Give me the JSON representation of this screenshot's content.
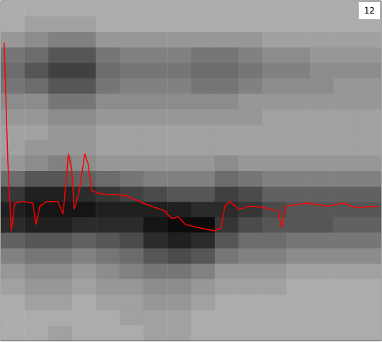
{
  "chart_data": {
    "type": "heatmap",
    "title": "12",
    "xlim": [
      0,
      100
    ],
    "xticks": [],
    "ylim": [
      0,
      22
    ],
    "yticks": [
      1,
      2,
      3,
      4,
      5,
      6,
      7,
      8,
      9,
      10,
      11,
      12,
      13,
      14,
      15,
      16,
      17,
      18,
      19,
      20,
      21
    ],
    "tick_labels": false,
    "grid": false,
    "x_edges": [
      0,
      6.25,
      12.5,
      18.75,
      25,
      31.25,
      37.5,
      43.75,
      50,
      56.25,
      62.5,
      68.75,
      75,
      81.25,
      87.5,
      93.75,
      100
    ],
    "y_edges": [
      0,
      1,
      2,
      3,
      4,
      5,
      6,
      7,
      8,
      9,
      10,
      11,
      12,
      13,
      14,
      15,
      16,
      17,
      18,
      19,
      20,
      21,
      22
    ],
    "color_range": [
      0,
      1
    ],
    "cells": [
      [
        0.2,
        0.2,
        0.25,
        0.2,
        0.2,
        0.2,
        0.25,
        0.25,
        0.2,
        0.2,
        0.2,
        0.2,
        0.2,
        0.2,
        0.2,
        0.2
      ],
      [
        0.2,
        0.2,
        0.2,
        0.2,
        0.2,
        0.25,
        0.25,
        0.25,
        0.2,
        0.2,
        0.2,
        0.2,
        0.2,
        0.2,
        0.2,
        0.2
      ],
      [
        0.2,
        0.25,
        0.25,
        0.2,
        0.25,
        0.25,
        0.3,
        0.3,
        0.25,
        0.2,
        0.2,
        0.2,
        0.2,
        0.2,
        0.2,
        0.2
      ],
      [
        0.25,
        0.3,
        0.3,
        0.25,
        0.3,
        0.3,
        0.35,
        0.35,
        0.3,
        0.25,
        0.25,
        0.25,
        0.2,
        0.2,
        0.2,
        0.2
      ],
      [
        0.3,
        0.35,
        0.35,
        0.3,
        0.35,
        0.4,
        0.45,
        0.45,
        0.4,
        0.3,
        0.3,
        0.3,
        0.25,
        0.25,
        0.25,
        0.25
      ],
      [
        0.4,
        0.45,
        0.45,
        0.4,
        0.45,
        0.5,
        0.6,
        0.65,
        0.6,
        0.45,
        0.4,
        0.4,
        0.35,
        0.35,
        0.35,
        0.35
      ],
      [
        0.55,
        0.6,
        0.6,
        0.55,
        0.6,
        0.65,
        0.8,
        0.85,
        0.8,
        0.6,
        0.5,
        0.5,
        0.45,
        0.45,
        0.45,
        0.45
      ],
      [
        0.8,
        0.85,
        0.85,
        0.8,
        0.8,
        0.8,
        0.9,
        0.95,
        0.95,
        0.75,
        0.65,
        0.6,
        0.6,
        0.6,
        0.55,
        0.55
      ],
      [
        0.85,
        0.9,
        0.9,
        0.9,
        0.85,
        0.85,
        0.85,
        0.85,
        0.8,
        0.8,
        0.75,
        0.65,
        0.6,
        0.6,
        0.6,
        0.6
      ],
      [
        0.75,
        0.85,
        0.85,
        0.8,
        0.75,
        0.7,
        0.65,
        0.6,
        0.6,
        0.7,
        0.65,
        0.55,
        0.55,
        0.55,
        0.55,
        0.55
      ],
      [
        0.5,
        0.6,
        0.6,
        0.55,
        0.5,
        0.45,
        0.4,
        0.4,
        0.4,
        0.5,
        0.45,
        0.4,
        0.4,
        0.4,
        0.4,
        0.4
      ],
      [
        0.3,
        0.35,
        0.4,
        0.35,
        0.3,
        0.3,
        0.3,
        0.3,
        0.3,
        0.35,
        0.3,
        0.3,
        0.3,
        0.3,
        0.3,
        0.3
      ],
      [
        0.25,
        0.3,
        0.3,
        0.3,
        0.25,
        0.25,
        0.25,
        0.25,
        0.25,
        0.25,
        0.25,
        0.25,
        0.25,
        0.25,
        0.25,
        0.25
      ],
      [
        0.25,
        0.25,
        0.3,
        0.3,
        0.25,
        0.25,
        0.25,
        0.25,
        0.25,
        0.25,
        0.25,
        0.25,
        0.25,
        0.25,
        0.25,
        0.25
      ],
      [
        0.3,
        0.3,
        0.35,
        0.35,
        0.3,
        0.3,
        0.3,
        0.3,
        0.3,
        0.3,
        0.3,
        0.25,
        0.25,
        0.25,
        0.25,
        0.25
      ],
      [
        0.35,
        0.35,
        0.45,
        0.45,
        0.35,
        0.35,
        0.35,
        0.35,
        0.35,
        0.35,
        0.3,
        0.3,
        0.3,
        0.3,
        0.3,
        0.3
      ],
      [
        0.45,
        0.5,
        0.6,
        0.6,
        0.45,
        0.4,
        0.4,
        0.4,
        0.45,
        0.45,
        0.4,
        0.35,
        0.35,
        0.35,
        0.3,
        0.3
      ],
      [
        0.5,
        0.6,
        0.7,
        0.7,
        0.5,
        0.45,
        0.45,
        0.45,
        0.5,
        0.5,
        0.45,
        0.4,
        0.4,
        0.35,
        0.35,
        0.35
      ],
      [
        0.45,
        0.5,
        0.6,
        0.6,
        0.45,
        0.4,
        0.4,
        0.4,
        0.45,
        0.45,
        0.4,
        0.35,
        0.35,
        0.3,
        0.3,
        0.3
      ],
      [
        0.3,
        0.35,
        0.4,
        0.4,
        0.3,
        0.3,
        0.3,
        0.3,
        0.3,
        0.3,
        0.3,
        0.25,
        0.25,
        0.25,
        0.25,
        0.25
      ],
      [
        0.2,
        0.25,
        0.25,
        0.25,
        0.2,
        0.2,
        0.2,
        0.2,
        0.2,
        0.2,
        0.2,
        0.2,
        0.2,
        0.2,
        0.2,
        0.2
      ],
      [
        0.2,
        0.2,
        0.2,
        0.2,
        0.2,
        0.2,
        0.2,
        0.2,
        0.2,
        0.2,
        0.2,
        0.2,
        0.2,
        0.2,
        0.2,
        0.2
      ]
    ],
    "series": [
      {
        "type": "line",
        "color": "#ff0000",
        "x": [
          0.9,
          1.9,
          2.8,
          3.7,
          5.6,
          8.4,
          9.3,
          10.3,
          12.1,
          15.0,
          16.4,
          17.8,
          18.7,
          19.3,
          20.6,
          22.1,
          23.0,
          23.9,
          26.2,
          32.7,
          37.4,
          43.0,
          44.9,
          46.7,
          48.6,
          52.3,
          56.1,
          57.9,
          58.9,
          60.2,
          62.6,
          65.4,
          69.2,
          72.9,
          73.8,
          74.8,
          80.4,
          86.0,
          89.7,
          93.5,
          99.1
        ],
        "values": [
          19.3,
          11.4,
          7.1,
          8.9,
          9.0,
          8.9,
          7.5,
          8.7,
          9.0,
          9.0,
          8.2,
          12.1,
          11.0,
          8.5,
          9.6,
          12.1,
          11.4,
          9.7,
          9.5,
          9.4,
          8.9,
          8.4,
          7.9,
          8.0,
          7.5,
          7.3,
          7.1,
          7.3,
          8.7,
          9.0,
          8.5,
          8.7,
          8.6,
          8.4,
          7.3,
          8.7,
          8.9,
          8.7,
          8.9,
          8.6,
          8.7
        ]
      }
    ]
  }
}
